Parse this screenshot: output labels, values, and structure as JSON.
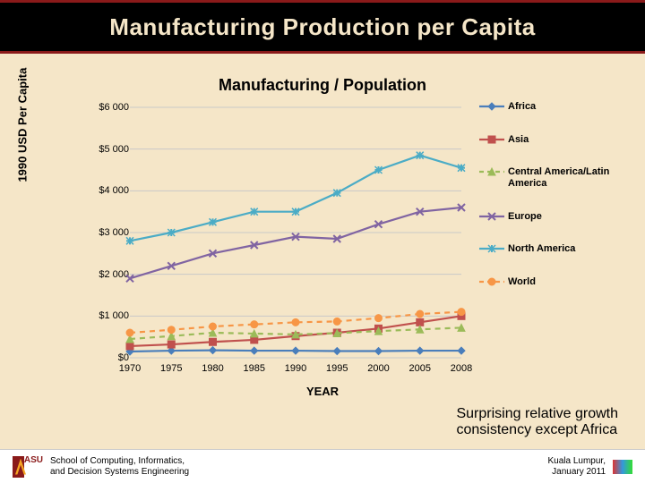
{
  "title": "Manufacturing Production per Capita",
  "chart": {
    "title": "Manufacturing / Population",
    "type": "line",
    "ylabel": "1990 USD Per Capita",
    "xlabel": "YEAR",
    "ylim": [
      0,
      6000
    ],
    "ytick_values": [
      0,
      1000,
      2000,
      3000,
      4000,
      5000,
      6000
    ],
    "ytick_labels": [
      "$0",
      "$1 000",
      "$2 000",
      "$3 000",
      "$4 000",
      "$5 000",
      "$6 000"
    ],
    "x_categories": [
      "1970",
      "1975",
      "1980",
      "1985",
      "1990",
      "1995",
      "2000",
      "2005",
      "2008"
    ],
    "background_color": "#f5e6c8",
    "grid_color": "#c9c9c9",
    "series": [
      {
        "name": "Africa",
        "color": "#4a7ebb",
        "marker": "diamond",
        "dash": "none",
        "values": [
          150,
          170,
          180,
          170,
          170,
          160,
          160,
          170,
          170
        ]
      },
      {
        "name": "Asia",
        "color": "#c0504d",
        "marker": "square",
        "dash": "none",
        "values": [
          280,
          320,
          380,
          430,
          520,
          600,
          700,
          850,
          1000
        ]
      },
      {
        "name": "Central America/Latin America",
        "color": "#9bbb59",
        "marker": "triangle",
        "dash": "dash",
        "values": [
          450,
          520,
          600,
          580,
          560,
          590,
          640,
          680,
          720
        ]
      },
      {
        "name": "Europe",
        "color": "#8064a2",
        "marker": "x",
        "dash": "none",
        "values": [
          1900,
          2200,
          2500,
          2700,
          2900,
          2850,
          3200,
          3500,
          3600
        ]
      },
      {
        "name": "North America",
        "color": "#4bacc6",
        "marker": "asterisk",
        "dash": "none",
        "values": [
          2800,
          3000,
          3250,
          3500,
          3500,
          3950,
          4500,
          4850,
          4550
        ]
      },
      {
        "name": "World",
        "color": "#f79646",
        "marker": "circle",
        "dash": "dash",
        "values": [
          600,
          670,
          750,
          800,
          850,
          870,
          950,
          1050,
          1100
        ]
      }
    ]
  },
  "caption_line1": "Surprising relative growth",
  "caption_line2": "consistency except Africa",
  "footer": {
    "logo_text": "ASU",
    "school_line1": "School of Computing, Informatics,",
    "school_line2": "and Decision Systems Engineering",
    "loc": "Kuala Lumpur,",
    "date": "January 2011"
  }
}
